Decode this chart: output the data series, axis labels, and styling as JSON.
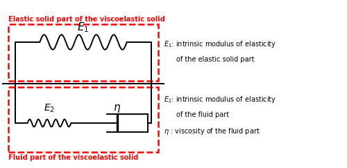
{
  "fig_width": 5.0,
  "fig_height": 2.43,
  "dpi": 100,
  "bg_color": "#ffffff",
  "red_color": "#ff0000",
  "black_color": "#000000",
  "title_top": "Elastic solid part of the viscoelastic solid",
  "title_bottom": "Fluid part of the viscoelastic solid",
  "label_E1_line1": "$E_1$: intrinsic modulus of elasticity",
  "label_E1_line2": "of the elastic solid part",
  "label_E2_line1": "$E_2$: intrinsic modulus of elasticity",
  "label_E2_line2": "of the fluid part",
  "label_eta": "$\\eta$ : viscosity of the fluid part"
}
